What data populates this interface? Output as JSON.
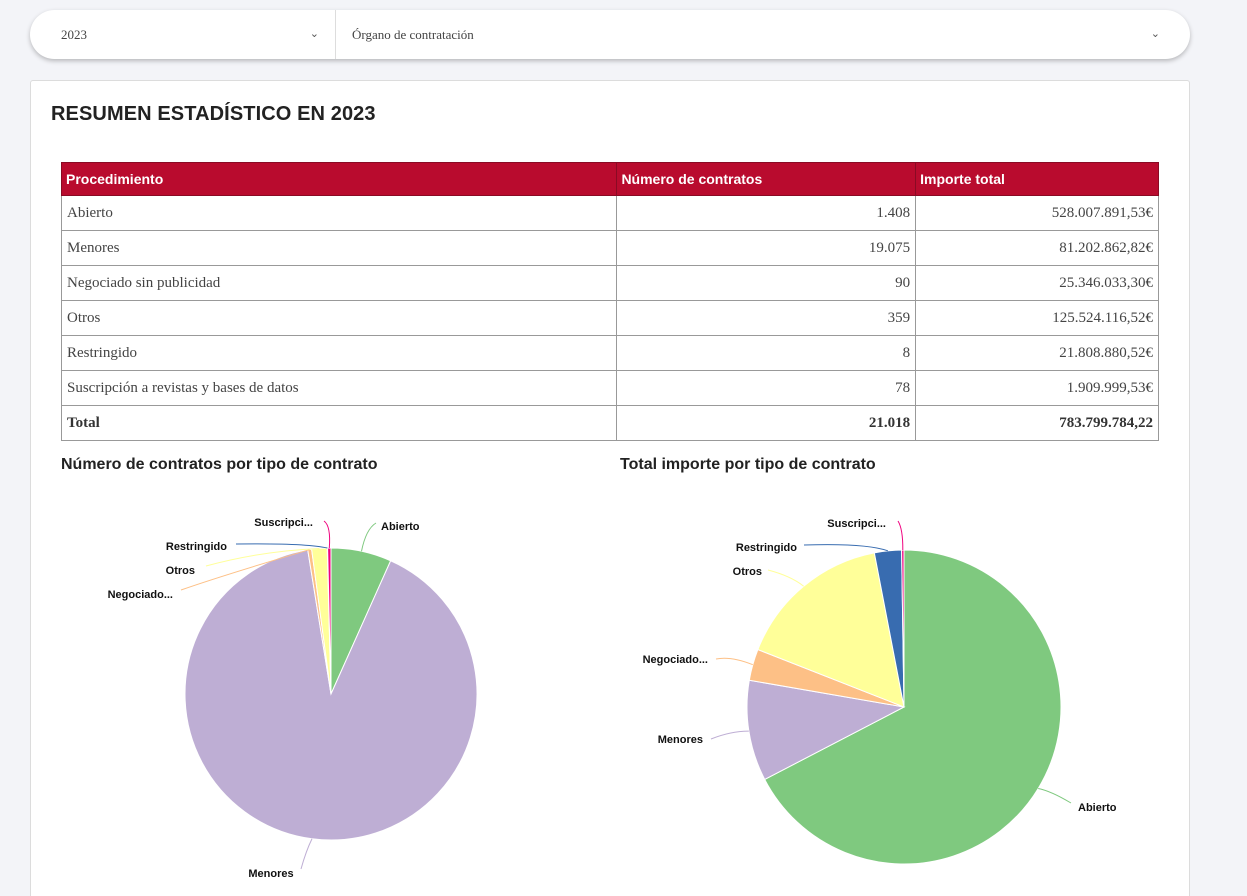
{
  "filters": {
    "year": "2023",
    "organ_placeholder": "Órgano de contratación"
  },
  "summary": {
    "title": "RESUMEN ESTADÍSTICO EN 2023",
    "headers": [
      "Procedimiento",
      "Número de contratos",
      "Importe total"
    ],
    "rows": [
      {
        "procedimiento": "Abierto",
        "contratos": "1.408",
        "importe": "528.007.891,53€"
      },
      {
        "procedimiento": "Menores",
        "contratos": "19.075",
        "importe": "81.202.862,82€"
      },
      {
        "procedimiento": "Negociado sin publicidad",
        "contratos": "90",
        "importe": "25.346.033,30€"
      },
      {
        "procedimiento": "Otros",
        "contratos": "359",
        "importe": "125.524.116,52€"
      },
      {
        "procedimiento": "Restringido",
        "contratos": "8",
        "importe": "21.808.880,52€"
      },
      {
        "procedimiento": "Suscripción a revistas y bases de datos",
        "contratos": "78",
        "importe": "1.909.999,53€"
      }
    ],
    "total": {
      "label": "Total",
      "contratos": "21.018",
      "importe": "783.799.784,22"
    }
  },
  "colors": {
    "header_bg": "#b90b2e",
    "Abierto": "#7fc97f",
    "Menores": "#beaed4",
    "Negociado": "#fdc086",
    "Otros": "#ffff99",
    "Restringido": "#386cb0",
    "Suscripcion": "#f0027f"
  },
  "chart_data": [
    {
      "type": "pie",
      "title": "Número de contratos por tipo de contrato",
      "categories": [
        "Abierto",
        "Menores",
        "Negociado...",
        "Otros",
        "Restringido",
        "Suscripci..."
      ],
      "values": [
        1408,
        19075,
        90,
        359,
        8,
        78
      ]
    },
    {
      "type": "pie",
      "title": "Total importe por tipo de contrato",
      "categories": [
        "Abierto",
        "Menores",
        "Negociado...",
        "Otros",
        "Restringido",
        "Suscripci..."
      ],
      "values": [
        528007891.53,
        81202862.82,
        25346033.3,
        125524116.52,
        21808880.52,
        1909999.53
      ]
    }
  ]
}
